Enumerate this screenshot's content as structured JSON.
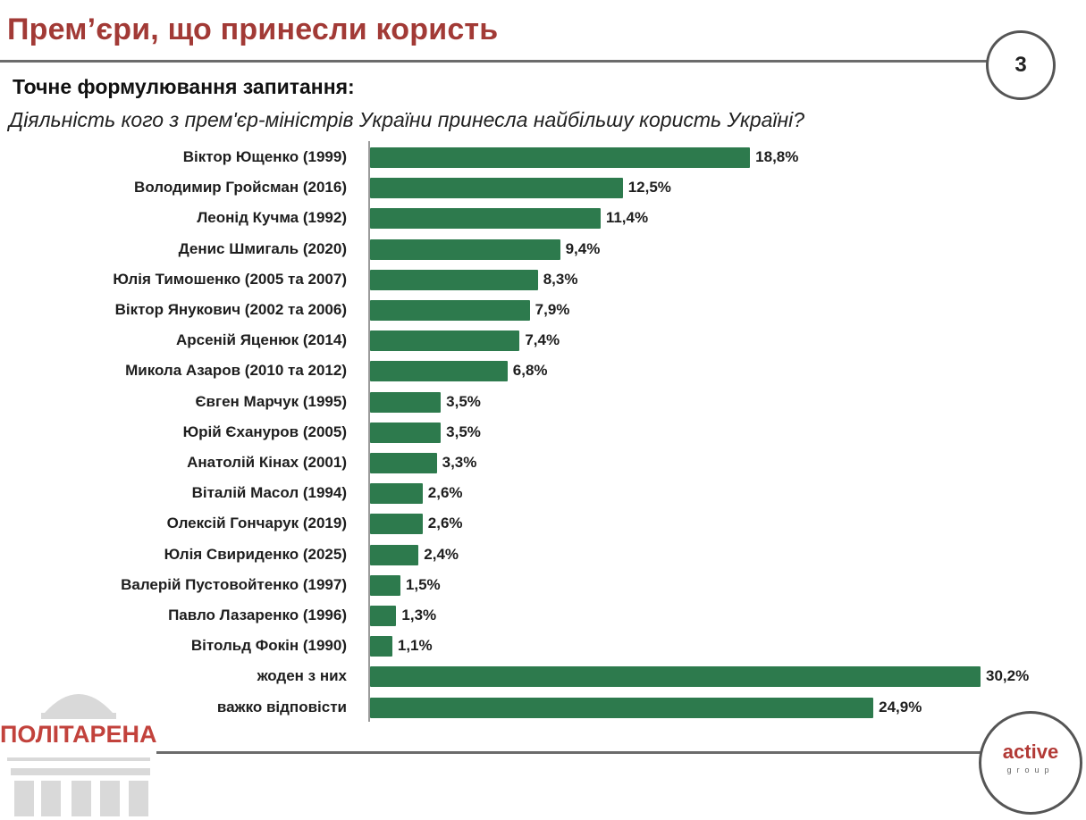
{
  "header": {
    "title": "Прем’єри, що принесли користь",
    "page_number": "3"
  },
  "question": {
    "heading": "Точне формулювання запитання:",
    "text": "Діяльність кого з прем'єр-міністрів України принесла найбільшу користь Україні?"
  },
  "chart_data": {
    "type": "bar",
    "orientation": "horizontal",
    "categories": [
      "Віктор Ющенко (1999)",
      "Володимир Гройсман (2016)",
      "Леонід Кучма (1992)",
      "Денис Шмигаль (2020)",
      "Юлія Тимошенко (2005 та 2007)",
      "Віктор Янукович (2002 та 2006)",
      "Арсеній Яценюк (2014)",
      "Микола Азаров (2010 та 2012)",
      "Євген Марчук (1995)",
      "Юрій Єхануров (2005)",
      "Анатолій Кінах (2001)",
      "Віталій Масол (1994)",
      "Олексій Гончарук (2019)",
      "Юлія Свириденко (2025)",
      "Валерій Пустовойтенко (1997)",
      "Павло Лазаренко (1996)",
      "Вітольд Фокін (1990)",
      "жоден з них",
      "важко відповісти"
    ],
    "values": [
      18.8,
      12.5,
      11.4,
      9.4,
      8.3,
      7.9,
      7.4,
      6.8,
      3.5,
      3.5,
      3.3,
      2.6,
      2.6,
      2.4,
      1.5,
      1.3,
      1.1,
      30.2,
      24.9
    ],
    "value_labels": [
      "18,8%",
      "12,5%",
      "11,4%",
      "9,4%",
      "8,3%",
      "7,9%",
      "7,4%",
      "6,8%",
      "3,5%",
      "3,5%",
      "3,3%",
      "2,6%",
      "2,6%",
      "2,4%",
      "1,5%",
      "1,3%",
      "1,1%",
      "30,2%",
      "24,9%"
    ],
    "xlim": [
      0,
      30.2
    ],
    "grid": false,
    "bar_color": "#2d7a4d"
  },
  "logos": {
    "left_text": "ПОЛІТАРЕНА",
    "right_word": "active",
    "right_sub": "group"
  },
  "colors": {
    "title": "#a23a36",
    "bar": "#2d7a4d",
    "logo_red": "#c2423c"
  }
}
